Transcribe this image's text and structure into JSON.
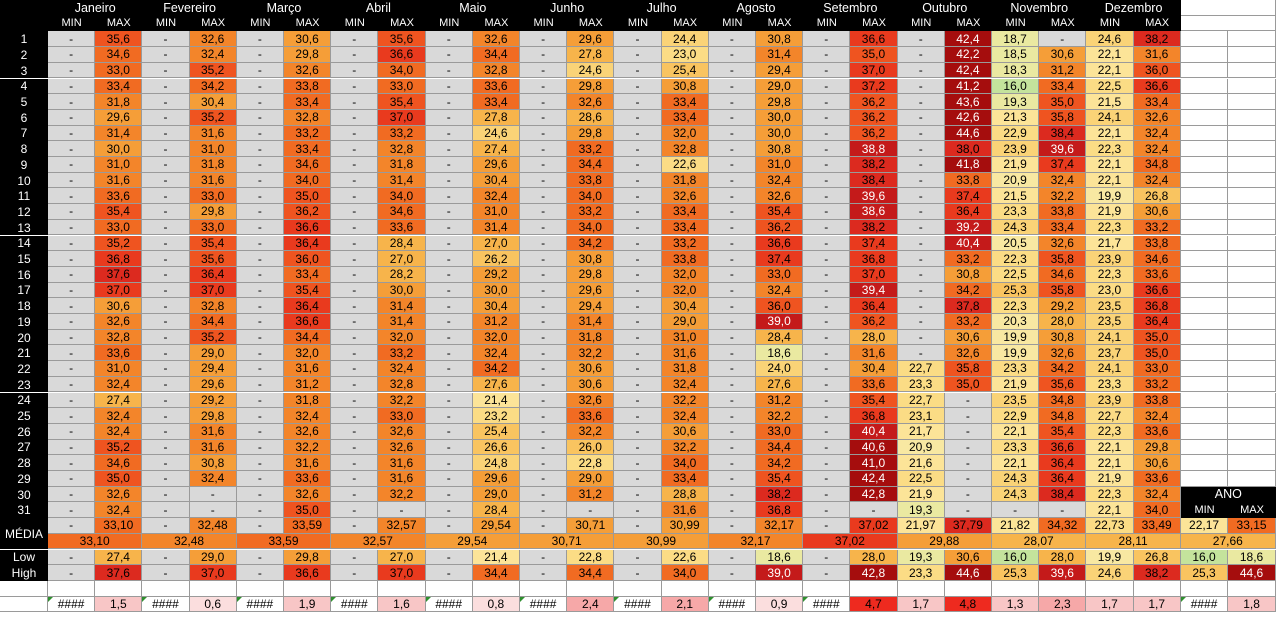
{
  "months": [
    "Janeiro",
    "Fevereiro",
    "Março",
    "Abril",
    "Maio",
    "Junho",
    "Julho",
    "Agosto",
    "Setembro",
    "Outubro",
    "Novembro",
    "Dezembro"
  ],
  "col_min_label": "MIN",
  "col_max_label": "MAX",
  "days": [
    "1",
    "2",
    "3",
    "4",
    "5",
    "6",
    "7",
    "8",
    "9",
    "10",
    "11",
    "12",
    "13",
    "14",
    "15",
    "16",
    "17",
    "18",
    "19",
    "20",
    "21",
    "22",
    "23",
    "24",
    "25",
    "26",
    "27",
    "28",
    "29",
    "30",
    "31"
  ],
  "grid": [
    [
      "-",
      "35,6",
      "-",
      "32,6",
      "-",
      "30,6",
      "-",
      "35,6",
      "-",
      "32,6",
      "-",
      "29,6",
      "-",
      "24,4",
      "-",
      "30,8",
      "-",
      "36,6",
      "-",
      "42,4",
      "18,7",
      "-",
      "24,6",
      "38,2"
    ],
    [
      "-",
      "34,6",
      "-",
      "32,4",
      "-",
      "29,8",
      "-",
      "36,6",
      "-",
      "34,4",
      "-",
      "27,8",
      "-",
      "23,0",
      "-",
      "31,4",
      "-",
      "35,0",
      "-",
      "42,2",
      "18,5",
      "30,6",
      "22,1",
      "31,6"
    ],
    [
      "-",
      "33,0",
      "-",
      "35,2",
      "-",
      "32,6",
      "-",
      "34,0",
      "-",
      "32,8",
      "-",
      "24,6",
      "-",
      "25,4",
      "-",
      "29,4",
      "-",
      "37,0",
      "-",
      "42,4",
      "18,3",
      "31,2",
      "22,1",
      "36,0"
    ],
    [
      "-",
      "33,4",
      "-",
      "34,2",
      "-",
      "33,8",
      "-",
      "33,0",
      "-",
      "33,6",
      "-",
      "29,8",
      "-",
      "30,8",
      "-",
      "29,0",
      "-",
      "37,2",
      "-",
      "41,2",
      "16,0",
      "33,4",
      "22,5",
      "36,6"
    ],
    [
      "-",
      "31,8",
      "-",
      "30,4",
      "-",
      "33,4",
      "-",
      "35,4",
      "-",
      "33,4",
      "-",
      "32,6",
      "-",
      "33,4",
      "-",
      "29,8",
      "-",
      "36,2",
      "-",
      "43,6",
      "19,3",
      "35,0",
      "21,5",
      "33,4"
    ],
    [
      "-",
      "29,6",
      "-",
      "35,2",
      "-",
      "32,8",
      "-",
      "37,0",
      "-",
      "27,8",
      "-",
      "28,6",
      "-",
      "33,4",
      "-",
      "30,0",
      "-",
      "36,2",
      "-",
      "42,6",
      "21,3",
      "35,8",
      "24,1",
      "32,6"
    ],
    [
      "-",
      "31,4",
      "-",
      "31,6",
      "-",
      "33,2",
      "-",
      "33,2",
      "-",
      "24,6",
      "-",
      "29,8",
      "-",
      "32,0",
      "-",
      "30,0",
      "-",
      "36,2",
      "-",
      "44,6",
      "22,9",
      "38,4",
      "22,1",
      "32,4"
    ],
    [
      "-",
      "30,0",
      "-",
      "31,0",
      "-",
      "33,4",
      "-",
      "32,8",
      "-",
      "27,4",
      "-",
      "33,2",
      "-",
      "32,8",
      "-",
      "30,8",
      "-",
      "38,8",
      "-",
      "38,0",
      "23,9",
      "39,6",
      "22,3",
      "32,4"
    ],
    [
      "-",
      "31,0",
      "-",
      "31,8",
      "-",
      "34,6",
      "-",
      "31,8",
      "-",
      "29,6",
      "-",
      "34,4",
      "-",
      "22,6",
      "-",
      "31,0",
      "-",
      "38,2",
      "-",
      "41,8",
      "21,9",
      "37,4",
      "22,1",
      "34,8"
    ],
    [
      "-",
      "31,6",
      "-",
      "31,6",
      "-",
      "34,0",
      "-",
      "31,4",
      "-",
      "30,4",
      "-",
      "33,8",
      "-",
      "31,8",
      "-",
      "32,4",
      "-",
      "38,4",
      "-",
      "33,8",
      "20,9",
      "32,4",
      "22,1",
      "32,4"
    ],
    [
      "-",
      "33,6",
      "-",
      "33,0",
      "-",
      "35,0",
      "-",
      "34,0",
      "-",
      "32,4",
      "-",
      "34,0",
      "-",
      "32,6",
      "-",
      "32,6",
      "-",
      "39,6",
      "-",
      "37,4",
      "21,5",
      "32,2",
      "19,9",
      "26,8"
    ],
    [
      "-",
      "35,4",
      "-",
      "29,8",
      "-",
      "36,2",
      "-",
      "34,6",
      "-",
      "31,0",
      "-",
      "33,2",
      "-",
      "33,4",
      "-",
      "35,4",
      "-",
      "38,6",
      "-",
      "36,4",
      "23,3",
      "33,8",
      "21,9",
      "30,6"
    ],
    [
      "-",
      "33,0",
      "-",
      "33,0",
      "-",
      "36,6",
      "-",
      "33,6",
      "-",
      "31,4",
      "-",
      "34,0",
      "-",
      "33,4",
      "-",
      "36,2",
      "-",
      "38,2",
      "-",
      "39,2",
      "24,3",
      "33,4",
      "22,3",
      "33,2"
    ],
    [
      "-",
      "35,2",
      "-",
      "35,4",
      "-",
      "36,4",
      "-",
      "28,4",
      "-",
      "27,0",
      "-",
      "34,2",
      "-",
      "33,2",
      "-",
      "36,6",
      "-",
      "37,4",
      "-",
      "40,4",
      "20,5",
      "32,6",
      "21,7",
      "33,8"
    ],
    [
      "-",
      "36,8",
      "-",
      "35,6",
      "-",
      "36,0",
      "-",
      "27,0",
      "-",
      "26,2",
      "-",
      "30,8",
      "-",
      "33,8",
      "-",
      "37,4",
      "-",
      "36,8",
      "-",
      "33,2",
      "22,3",
      "35,8",
      "23,9",
      "34,6"
    ],
    [
      "-",
      "37,6",
      "-",
      "36,4",
      "-",
      "33,4",
      "-",
      "28,2",
      "-",
      "29,2",
      "-",
      "29,8",
      "-",
      "32,0",
      "-",
      "33,0",
      "-",
      "37,0",
      "-",
      "30,8",
      "22,5",
      "34,6",
      "22,3",
      "33,6"
    ],
    [
      "-",
      "37,0",
      "-",
      "37,0",
      "-",
      "35,4",
      "-",
      "30,0",
      "-",
      "30,0",
      "-",
      "29,6",
      "-",
      "32,0",
      "-",
      "32,4",
      "-",
      "39,4",
      "-",
      "34,2",
      "25,3",
      "35,8",
      "23,0",
      "36,6"
    ],
    [
      "-",
      "30,6",
      "-",
      "32,8",
      "-",
      "36,4",
      "-",
      "31,4",
      "-",
      "30,4",
      "-",
      "29,4",
      "-",
      "30,4",
      "-",
      "36,0",
      "-",
      "36,4",
      "-",
      "37,8",
      "22,3",
      "29,2",
      "23,5",
      "36,8"
    ],
    [
      "-",
      "32,6",
      "-",
      "34,4",
      "-",
      "36,6",
      "-",
      "31,4",
      "-",
      "31,2",
      "-",
      "31,4",
      "-",
      "29,0",
      "-",
      "39,0",
      "-",
      "36,2",
      "-",
      "33,2",
      "20,3",
      "28,0",
      "23,5",
      "36,4"
    ],
    [
      "-",
      "32,8",
      "-",
      "35,2",
      "-",
      "34,4",
      "-",
      "32,0",
      "-",
      "32,0",
      "-",
      "31,8",
      "-",
      "31,0",
      "-",
      "28,4",
      "-",
      "28,0",
      "-",
      "30,6",
      "19,9",
      "30,8",
      "24,1",
      "35,0"
    ],
    [
      "-",
      "33,6",
      "-",
      "29,0",
      "-",
      "32,0",
      "-",
      "33,2",
      "-",
      "32,4",
      "-",
      "32,2",
      "-",
      "31,6",
      "-",
      "18,6",
      "-",
      "31,6",
      "-",
      "32,6",
      "19,9",
      "32,6",
      "23,7",
      "35,0"
    ],
    [
      "-",
      "31,0",
      "-",
      "29,4",
      "-",
      "31,6",
      "-",
      "32,4",
      "-",
      "34,2",
      "-",
      "30,6",
      "-",
      "31,8",
      "-",
      "24,0",
      "-",
      "30,4",
      "22,7",
      "35,8",
      "23,3",
      "34,2",
      "24,1",
      "33,0"
    ],
    [
      "-",
      "32,4",
      "-",
      "29,6",
      "-",
      "31,2",
      "-",
      "32,8",
      "-",
      "27,6",
      "-",
      "30,6",
      "-",
      "32,4",
      "-",
      "27,6",
      "-",
      "33,6",
      "23,3",
      "35,0",
      "21,9",
      "35,6",
      "23,3",
      "33,2"
    ],
    [
      "-",
      "27,4",
      "-",
      "29,2",
      "-",
      "31,8",
      "-",
      "32,2",
      "-",
      "21,4",
      "-",
      "32,6",
      "-",
      "32,2",
      "-",
      "31,2",
      "-",
      "35,4",
      "22,7",
      "-",
      "23,5",
      "34,8",
      "23,9",
      "33,8"
    ],
    [
      "-",
      "32,4",
      "-",
      "29,8",
      "-",
      "32,4",
      "-",
      "33,0",
      "-",
      "23,2",
      "-",
      "33,6",
      "-",
      "32,4",
      "-",
      "32,2",
      "-",
      "36,8",
      "23,1",
      "-",
      "22,9",
      "34,8",
      "22,7",
      "32,4"
    ],
    [
      "-",
      "32,4",
      "-",
      "31,6",
      "-",
      "32,6",
      "-",
      "32,6",
      "-",
      "25,4",
      "-",
      "32,2",
      "-",
      "30,6",
      "-",
      "33,0",
      "-",
      "40,4",
      "21,7",
      "-",
      "22,1",
      "35,4",
      "22,3",
      "33,6"
    ],
    [
      "-",
      "35,2",
      "-",
      "31,6",
      "-",
      "32,2",
      "-",
      "32,6",
      "-",
      "26,6",
      "-",
      "26,0",
      "-",
      "32,2",
      "-",
      "34,4",
      "-",
      "40,6",
      "20,9",
      "-",
      "23,3",
      "36,6",
      "22,1",
      "29,8"
    ],
    [
      "-",
      "34,6",
      "-",
      "30,8",
      "-",
      "31,6",
      "-",
      "31,6",
      "-",
      "24,8",
      "-",
      "22,8",
      "-",
      "34,0",
      "-",
      "34,2",
      "-",
      "41,0",
      "21,6",
      "-",
      "22,1",
      "36,4",
      "22,1",
      "30,6"
    ],
    [
      "-",
      "35,0",
      "-",
      "32,4",
      "-",
      "33,6",
      "-",
      "31,6",
      "-",
      "29,6",
      "-",
      "29,0",
      "-",
      "33,4",
      "-",
      "35,4",
      "-",
      "42,4",
      "22,5",
      "-",
      "24,3",
      "36,4",
      "21,9",
      "33,6"
    ],
    [
      "-",
      "32,6",
      "-",
      "-",
      "-",
      "32,6",
      "-",
      "32,2",
      "-",
      "29,0",
      "-",
      "31,2",
      "-",
      "28,8",
      "-",
      "38,2",
      "-",
      "42,8",
      "21,9",
      "-",
      "24,3",
      "38,4",
      "22,3",
      "32,4"
    ],
    [
      "-",
      "32,4",
      "-",
      "-",
      "-",
      "35,0",
      "-",
      "-",
      "-",
      "28,4",
      "-",
      "-",
      "-",
      "31,6",
      "-",
      "36,8",
      "-",
      "-",
      "19,3",
      "-",
      "-",
      "-",
      "22,1",
      "34,0"
    ]
  ],
  "media_label": "MÉDIA",
  "media_row": [
    "-",
    "33,10",
    "-",
    "32,48",
    "-",
    "33,59",
    "-",
    "32,57",
    "-",
    "29,54",
    "-",
    "30,71",
    "-",
    "30,99",
    "-",
    "32,17",
    "-",
    "37,02",
    "21,97",
    "37,79",
    "21,82",
    "34,32",
    "22,73",
    "33,49"
  ],
  "media_combined": [
    "33,10",
    "32,48",
    "33,59",
    "32,57",
    "29,54",
    "30,71",
    "30,99",
    "32,17",
    "37,02",
    "29,88",
    "28,07",
    "28,11"
  ],
  "low_label": "Low",
  "low_row": [
    "-",
    "27,4",
    "-",
    "29,0",
    "-",
    "29,8",
    "-",
    "27,0",
    "-",
    "21,4",
    "-",
    "22,8",
    "-",
    "22,6",
    "-",
    "18,6",
    "-",
    "28,0",
    "19,3",
    "30,6",
    "16,0",
    "28,0",
    "19,9",
    "26,8"
  ],
  "high_label": "High",
  "high_row": [
    "-",
    "37,6",
    "-",
    "37,0",
    "-",
    "36,6",
    "-",
    "37,0",
    "-",
    "34,4",
    "-",
    "34,4",
    "-",
    "34,0",
    "-",
    "39,0",
    "-",
    "42,8",
    "23,3",
    "44,6",
    "25,3",
    "39,6",
    "24,6",
    "38,2"
  ],
  "diff_row": [
    "####",
    "1,5",
    "####",
    "0,6",
    "####",
    "1,9",
    "####",
    "1,6",
    "####",
    "0,8",
    "####",
    "2,4",
    "####",
    "2,1",
    "####",
    "0,9",
    "####",
    "4,7",
    "1,7",
    "4,8",
    "1,3",
    "2,3",
    "1,7",
    "1,7"
  ],
  "ano": {
    "label": "ANO",
    "min_label": "MIN",
    "max_label": "MAX",
    "media_min": "22,17",
    "media_max": "33,15",
    "media_combined": "27,66",
    "low_min": "16,0",
    "low_max": "18,6",
    "high_min": "25,3",
    "high_max": "44,6",
    "diff_min": "####",
    "diff_max": "1,8"
  }
}
